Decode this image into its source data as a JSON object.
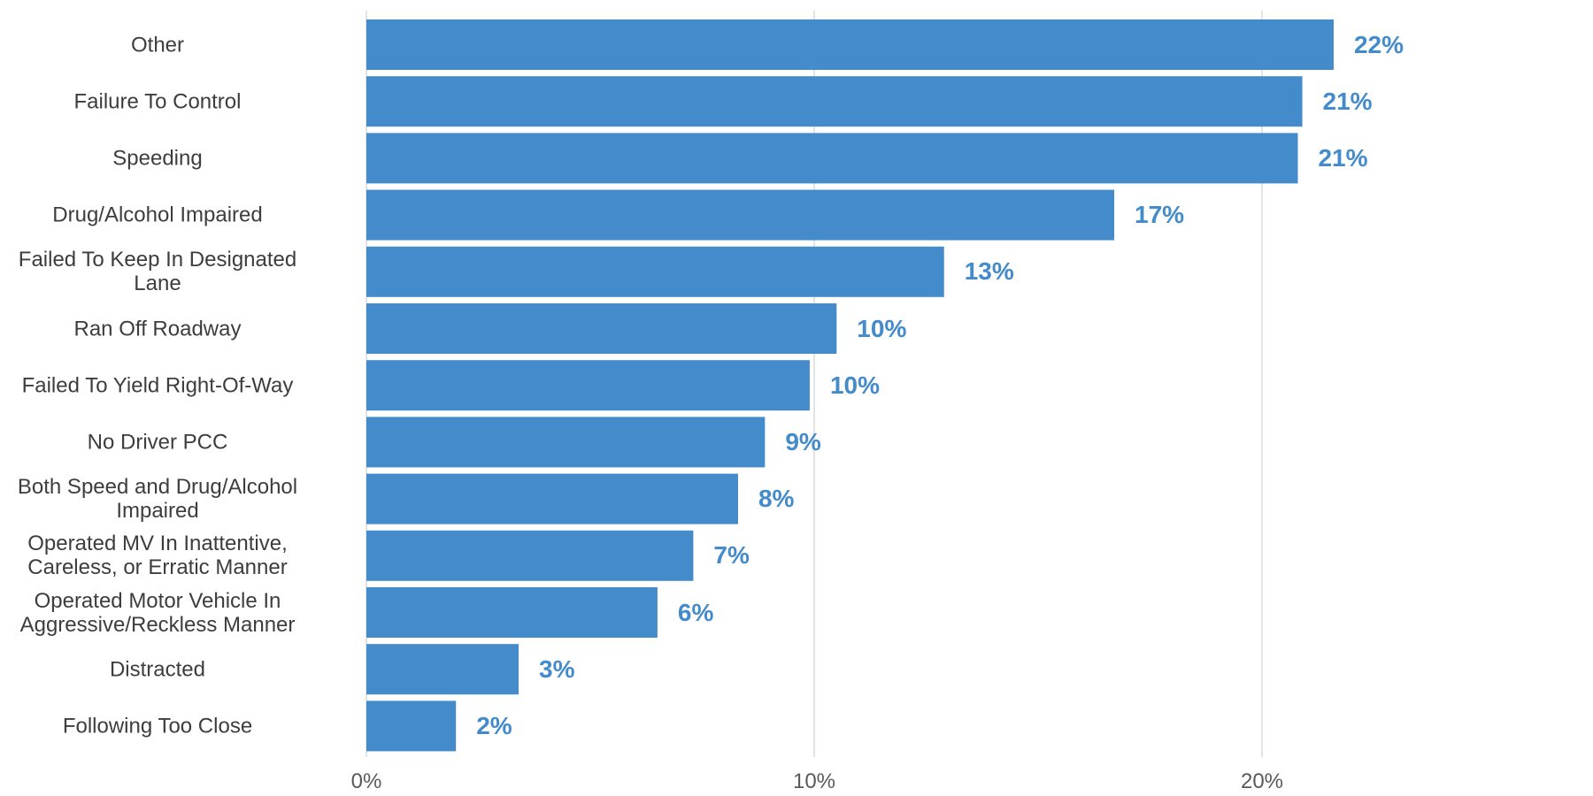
{
  "chart_data": {
    "type": "bar",
    "orientation": "horizontal",
    "categories": [
      "Other",
      "Failure To Control",
      "Speeding",
      "Drug/Alcohol Impaired",
      "Failed To Keep In Designated Lane",
      "Ran Off Roadway",
      "Failed To Yield Right-Of-Way",
      "No Driver PCC",
      "Both Speed and Drug/Alcohol Impaired",
      "Operated MV In Inattentive, Careless, or Erratic Manner",
      "Operated Motor Vehicle In Aggressive/Reckless Manner",
      "Distracted",
      "Following Too Close"
    ],
    "values": [
      21.6,
      20.9,
      20.8,
      16.7,
      12.9,
      10.5,
      9.9,
      8.9,
      8.3,
      7.3,
      6.5,
      3.4,
      2.0
    ],
    "data_labels": [
      "22%",
      "21%",
      "21%",
      "17%",
      "13%",
      "10%",
      "10%",
      "9%",
      "8%",
      "7%",
      "6%",
      "3%",
      "2%"
    ],
    "xlim": [
      0,
      27
    ],
    "x_ticks": [
      0,
      10,
      20
    ],
    "x_tick_labels": [
      "0%",
      "10%",
      "20%"
    ],
    "title": "",
    "xlabel": "",
    "ylabel": "",
    "grid": "vertical",
    "bar_color": "#438bcb",
    "label_color": "#438bcb",
    "grid_color": "#e3e3e3"
  }
}
